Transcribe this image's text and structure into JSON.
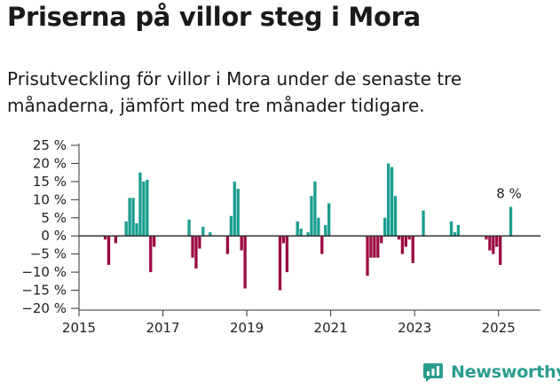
{
  "title": "Priserna på villor steg i Mora",
  "subtitle": "Prisutveckling för villor i Mora under de senaste tre månaderna, jämfört med tre månader tidigare.",
  "brand": {
    "name": "Newsworthy"
  },
  "colors": {
    "positive": "#1a9e8f",
    "negative": "#9b0a42",
    "axis": "#333333",
    "grid": "#e6e6e6"
  },
  "chart_data": {
    "type": "bar",
    "title": "",
    "xlabel": "",
    "ylabel": "",
    "xlim": [
      "2015-01",
      "2025-12"
    ],
    "ylim": [
      -20,
      25
    ],
    "yticks": [
      25,
      20,
      15,
      10,
      5,
      0,
      -5,
      -10,
      -15,
      -20
    ],
    "ytick_labels": [
      "25 %",
      "20 %",
      "15 %",
      "10 %",
      "5 %",
      "0 %",
      "−5 %",
      "−10 %",
      "−15 %",
      "−20 %"
    ],
    "xticks": [
      "2015-01",
      "2017-01",
      "2019-01",
      "2021-01",
      "2023-01",
      "2025-01"
    ],
    "xtick_labels": [
      "2015",
      "2017",
      "2019",
      "2021",
      "2023",
      "2025"
    ],
    "grid": false,
    "annotations": [
      {
        "x": "2025-04",
        "y": 8,
        "text": "8 %"
      }
    ],
    "series": [
      {
        "x": [
          "2015-08",
          "2015-09",
          "2015-11",
          "2016-02",
          "2016-03",
          "2016-04",
          "2016-05",
          "2016-06",
          "2016-07",
          "2016-08",
          "2016-09",
          "2016-10",
          "2017-08",
          "2017-09",
          "2017-10",
          "2017-11",
          "2017-12",
          "2018-02",
          "2018-07",
          "2018-08",
          "2018-09",
          "2018-10",
          "2018-11",
          "2018-12",
          "2019-10",
          "2019-11",
          "2019-12",
          "2020-03",
          "2020-04",
          "2020-06",
          "2020-07",
          "2020-08",
          "2020-09",
          "2020-10",
          "2020-11",
          "2020-12",
          "2021-11",
          "2021-12",
          "2022-01",
          "2022-02",
          "2022-03",
          "2022-04",
          "2022-05",
          "2022-06",
          "2022-07",
          "2022-08",
          "2022-09",
          "2022-10",
          "2022-11",
          "2022-12",
          "2023-03",
          "2023-11",
          "2023-12",
          "2024-01",
          "2024-09",
          "2024-10",
          "2024-11",
          "2024-12",
          "2025-01",
          "2025-04"
        ],
        "values": [
          -1,
          -8,
          -2,
          4,
          10.5,
          10.5,
          3.5,
          17.5,
          15,
          15.5,
          -10,
          -3,
          4.5,
          -6,
          -9,
          -3.5,
          2.5,
          1,
          -5,
          5.5,
          15,
          13,
          -4,
          -14.5,
          -15,
          -2,
          -10,
          4,
          2,
          1,
          11,
          15,
          5,
          -5,
          3,
          9,
          -11,
          -6,
          -6,
          -6,
          -2,
          5,
          20,
          19,
          11,
          -1,
          -5,
          -3,
          -1,
          -7.5,
          7,
          4,
          1,
          3,
          -1,
          -4,
          -5,
          -3,
          -8,
          8
        ]
      }
    ]
  }
}
